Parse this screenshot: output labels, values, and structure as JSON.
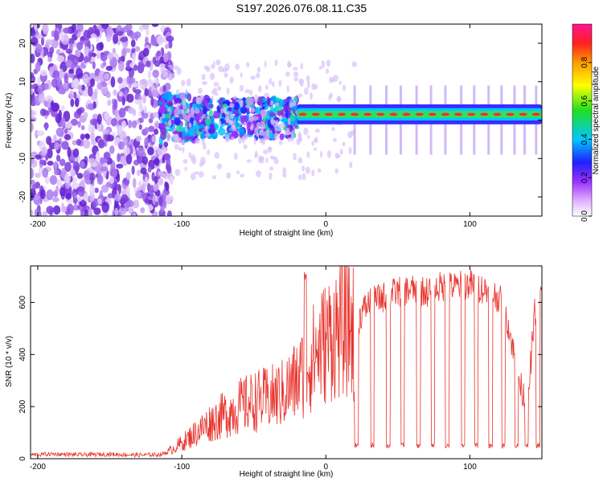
{
  "title": "S197.2026.076.08.11.C35",
  "chart_data": [
    {
      "type": "heatmap",
      "name": "spectrogram",
      "xlabel": "Height of straight line (km)",
      "ylabel": "Frequency (Hz)",
      "xlim": [
        -205,
        150
      ],
      "ylim": [
        -25,
        25
      ],
      "xticks": [
        -200,
        -100,
        0,
        100
      ],
      "xtick_labels": [
        "-200",
        "-100",
        "0",
        "100"
      ],
      "yticks": [
        -20,
        -10,
        0,
        10,
        20
      ],
      "ytick_labels": [
        "-20",
        "-10",
        "0",
        "10",
        "20"
      ],
      "colorbar": {
        "label": "Normalized spectral amplitude",
        "range": [
          0,
          1
        ],
        "ticks": [
          0.0,
          0.2,
          0.4,
          0.6,
          0.8
        ],
        "tick_labels": [
          "0.0",
          "0.2",
          "0.4",
          "0.6",
          "0.8"
        ]
      },
      "features": [
        {
          "region": "noise",
          "x_range": [
            -205,
            -115
          ],
          "freq_range": [
            -25,
            25
          ],
          "amplitude": 0.05
        },
        {
          "region": "onset",
          "x_range": [
            -115,
            -20
          ],
          "freq_range": [
            -6,
            6
          ],
          "amplitude": 0.3
        },
        {
          "region": "tone",
          "x_range": [
            -20,
            150
          ],
          "freq_hz": 1.5,
          "amplitude": 0.9
        }
      ]
    },
    {
      "type": "line",
      "name": "snr",
      "xlabel": "Height of straight line (km)",
      "ylabel": "SNR (10 * v/v)",
      "xlim": [
        -205,
        150
      ],
      "ylim": [
        0,
        740
      ],
      "xticks": [
        -200,
        -100,
        0,
        100
      ],
      "xtick_labels": [
        "-200",
        "-100",
        "0",
        "100"
      ],
      "yticks": [
        0,
        200,
        400,
        600
      ],
      "ytick_labels": [
        "0",
        "200",
        "400",
        "600"
      ],
      "line_color": "#e8332c",
      "series": [
        {
          "name": "SNR",
          "x": [
            -205,
            -190,
            -170,
            -150,
            -130,
            -115,
            -110,
            -100,
            -90,
            -80,
            -70,
            -60,
            -50,
            -40,
            -30,
            -20,
            -17,
            -14,
            -10,
            -5,
            0,
            5,
            10,
            15,
            19,
            20,
            22,
            25,
            30,
            40,
            50,
            60,
            70,
            80,
            90,
            100,
            110,
            120,
            125,
            130,
            135,
            140,
            145,
            150
          ],
          "values": [
            15,
            18,
            15,
            17,
            14,
            16,
            25,
            60,
            100,
            140,
            170,
            200,
            220,
            230,
            250,
            300,
            320,
            350,
            380,
            420,
            450,
            480,
            500,
            510,
            500,
            50,
            520,
            560,
            600,
            620,
            640,
            650,
            640,
            660,
            660,
            670,
            650,
            620,
            560,
            420,
            280,
            200,
            560,
            640
          ]
        }
      ],
      "dropouts_x": [
        20,
        31,
        42,
        52,
        63,
        73,
        83,
        94,
        103,
        113,
        122,
        131,
        138,
        146
      ],
      "dropout_value": 50
    }
  ],
  "colors": {
    "background": "#ffffff",
    "noise_fill": "#7a3cd8",
    "snr_line": "#e8332c"
  }
}
